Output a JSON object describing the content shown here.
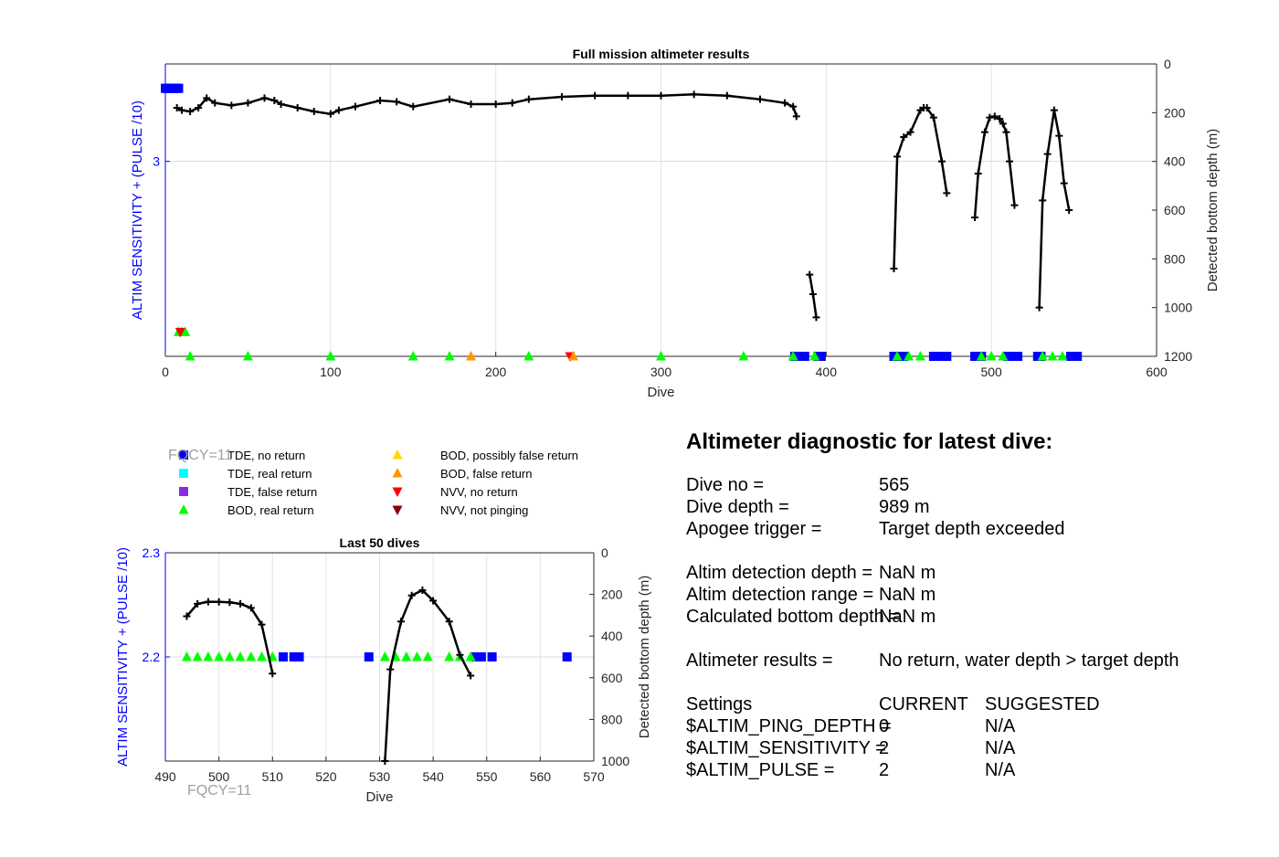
{
  "chart_data": [
    {
      "type": "scatter",
      "title": "Full mission altimeter results",
      "xlabel": "Dive",
      "ylabel_left": "ALTIM SENSITIVITY + (PULSE /10)",
      "ylabel_right": "Detected bottom depth (m)",
      "xlim": [
        0,
        600
      ],
      "xticks": [
        "0",
        "100",
        "200",
        "300",
        "400",
        "500",
        "600"
      ],
      "xtick_values": [
        0,
        100,
        200,
        300,
        400,
        500,
        600
      ],
      "ylim_left": [
        1.8,
        3.6
      ],
      "yticks_left": [
        "3"
      ],
      "ytick_left_values": [
        3
      ],
      "ylim_right_reversed": [
        0,
        1200
      ],
      "yticks_right": [
        "0",
        "200",
        "400",
        "600",
        "800",
        "1000",
        "1200"
      ],
      "ytick_right_values": [
        0,
        200,
        400,
        600,
        800,
        1000,
        1200
      ],
      "grid": true,
      "colors": {
        "left_axis": "#0000ff",
        "tde_no_return": "#0000ff",
        "bod_real_return": "#00ff00",
        "depth_line": "#000000",
        "grid": "#dcdcf0"
      },
      "series": [
        {
          "name": "TDE, no return",
          "points": [
            [
              0,
              3.45
            ],
            [
              1,
              3.45
            ],
            [
              2,
              3.45
            ],
            [
              3,
              3.45
            ],
            [
              4,
              3.45
            ],
            [
              5,
              3.45
            ],
            [
              6,
              3.45
            ],
            [
              7,
              3.45
            ],
            [
              8,
              3.45
            ],
            [
              381,
              1.8
            ],
            [
              383,
              1.8
            ],
            [
              385,
              1.8
            ],
            [
              387,
              1.8
            ],
            [
              395,
              1.8
            ],
            [
              397,
              1.8
            ],
            [
              441,
              1.8
            ],
            [
              443,
              1.8
            ],
            [
              445,
              1.8
            ],
            [
              447,
              1.8
            ],
            [
              465,
              1.8
            ],
            [
              467,
              1.8
            ],
            [
              469,
              1.8
            ],
            [
              471,
              1.8
            ],
            [
              473,
              1.8
            ],
            [
              490,
              1.8
            ],
            [
              492,
              1.8
            ],
            [
              494,
              1.8
            ],
            [
              510,
              1.8
            ],
            [
              512,
              1.8
            ],
            [
              514,
              1.8
            ],
            [
              516,
              1.8
            ],
            [
              528,
              1.8
            ],
            [
              530,
              1.8
            ],
            [
              548,
              1.8
            ],
            [
              550,
              1.8
            ],
            [
              552,
              1.8
            ]
          ]
        },
        {
          "name": "BOD, real return",
          "points": [
            [
              8,
              1.95
            ],
            [
              10,
              1.95
            ],
            [
              12,
              1.95
            ],
            [
              15,
              1.8
            ],
            [
              50,
              1.8
            ],
            [
              100,
              1.8
            ],
            [
              150,
              1.8
            ],
            [
              172,
              1.8
            ],
            [
              220,
              1.8
            ],
            [
              300,
              1.8
            ],
            [
              350,
              1.8
            ],
            [
              380,
              1.8
            ],
            [
              393,
              1.8
            ],
            [
              443,
              1.8
            ],
            [
              450,
              1.8
            ],
            [
              457,
              1.8
            ],
            [
              494,
              1.8
            ],
            [
              500,
              1.8
            ],
            [
              507,
              1.8
            ],
            [
              531,
              1.8
            ],
            [
              537,
              1.8
            ],
            [
              543,
              1.8
            ]
          ]
        },
        {
          "name": "NVV, no return",
          "points": [
            [
              9,
              1.95
            ],
            [
              245,
              1.8
            ]
          ]
        },
        {
          "name": "BOD, false return",
          "points": [
            [
              185,
              1.8
            ],
            [
              247,
              1.8
            ]
          ]
        }
      ],
      "depth_line": {
        "name": "Detected bottom depth",
        "segments": [
          [
            [
              7,
              180
            ],
            [
              10,
              190
            ],
            [
              15,
              195
            ],
            [
              20,
              180
            ],
            [
              25,
              140
            ],
            [
              30,
              160
            ],
            [
              40,
              170
            ],
            [
              50,
              160
            ],
            [
              60,
              140
            ],
            [
              66,
              150
            ],
            [
              70,
              165
            ],
            [
              80,
              180
            ],
            [
              90,
              195
            ],
            [
              100,
              205
            ],
            [
              105,
              190
            ],
            [
              115,
              175
            ],
            [
              130,
              150
            ],
            [
              140,
              155
            ],
            [
              150,
              175
            ],
            [
              172,
              145
            ],
            [
              185,
              165
            ],
            [
              200,
              165
            ],
            [
              210,
              160
            ],
            [
              220,
              145
            ],
            [
              240,
              135
            ],
            [
              260,
              130
            ],
            [
              280,
              130
            ],
            [
              300,
              130
            ],
            [
              320,
              125
            ],
            [
              340,
              130
            ],
            [
              360,
              145
            ],
            [
              375,
              160
            ],
            [
              380,
              175
            ],
            [
              382,
              215
            ]
          ],
          [
            [
              390,
              865
            ],
            [
              392,
              945
            ],
            [
              394,
              1040
            ]
          ],
          [
            [
              441,
              840
            ],
            [
              443,
              380
            ],
            [
              447,
              300
            ],
            [
              451,
              280
            ],
            [
              457,
              190
            ],
            [
              459,
              180
            ],
            [
              461,
              180
            ],
            [
              465,
              220
            ],
            [
              470,
              400
            ],
            [
              473,
              530
            ]
          ],
          [
            [
              490,
              630
            ],
            [
              492,
              450
            ],
            [
              496,
              280
            ],
            [
              499,
              220
            ],
            [
              502,
              215
            ],
            [
              505,
              225
            ],
            [
              507,
              245
            ],
            [
              509,
              280
            ],
            [
              511,
              400
            ],
            [
              514,
              580
            ]
          ],
          [
            [
              529,
              1000
            ],
            [
              531,
              560
            ],
            [
              534,
              370
            ],
            [
              538,
              190
            ],
            [
              541,
              295
            ],
            [
              544,
              490
            ],
            [
              547,
              600
            ]
          ]
        ]
      }
    },
    {
      "type": "scatter",
      "title": "Last 50 dives",
      "xlabel": "Dive",
      "ylabel_left": "ALTIM SENSITIVITY + (PULSE /10)",
      "ylabel_right": "Detected bottom depth (m)",
      "xlim": [
        490,
        570
      ],
      "xticks": [
        "490",
        "500",
        "510",
        "520",
        "530",
        "540",
        "550",
        "560",
        "570"
      ],
      "xtick_values": [
        490,
        500,
        510,
        520,
        530,
        540,
        550,
        560,
        570
      ],
      "ylim_left": [
        2.1,
        2.3
      ],
      "yticks_left": [
        "2.3",
        "2.2"
      ],
      "ytick_left_values": [
        2.3,
        2.2
      ],
      "ylim_right_reversed": [
        0,
        1000
      ],
      "yticks_right": [
        "0",
        "200",
        "400",
        "600",
        "800",
        "1000"
      ],
      "ytick_right_values": [
        0,
        200,
        400,
        600,
        800,
        1000
      ],
      "grid": true,
      "series": [
        {
          "name": "TDE, no return",
          "points": [
            [
              512,
              2.2
            ],
            [
              514,
              2.2
            ],
            [
              515,
              2.2
            ],
            [
              528,
              2.2
            ],
            [
              548,
              2.2
            ],
            [
              549,
              2.2
            ],
            [
              551,
              2.2
            ],
            [
              565,
              2.2
            ]
          ]
        },
        {
          "name": "BOD, real return",
          "points": [
            [
              494,
              2.2
            ],
            [
              496,
              2.2
            ],
            [
              498,
              2.2
            ],
            [
              500,
              2.2
            ],
            [
              502,
              2.2
            ],
            [
              504,
              2.2
            ],
            [
              506,
              2.2
            ],
            [
              508,
              2.2
            ],
            [
              510,
              2.2
            ],
            [
              531,
              2.2
            ],
            [
              533,
              2.2
            ],
            [
              535,
              2.2
            ],
            [
              537,
              2.2
            ],
            [
              539,
              2.2
            ],
            [
              543,
              2.2
            ],
            [
              545,
              2.2
            ],
            [
              547,
              2.2
            ]
          ]
        }
      ],
      "depth_line": {
        "name": "Detected bottom depth",
        "segments": [
          [
            [
              494,
              305
            ],
            [
              496,
              245
            ],
            [
              498,
              235
            ],
            [
              500,
              236
            ],
            [
              502,
              238
            ],
            [
              504,
              245
            ],
            [
              506,
              265
            ],
            [
              508,
              345
            ],
            [
              510,
              580
            ]
          ],
          [
            [
              531,
              1000
            ],
            [
              532,
              560
            ],
            [
              534,
              330
            ],
            [
              536,
              205
            ],
            [
              538,
              180
            ],
            [
              540,
              230
            ],
            [
              543,
              330
            ],
            [
              545,
              490
            ],
            [
              547,
              590
            ]
          ]
        ]
      }
    }
  ],
  "fqcy": {
    "top": "FQCY=11",
    "bottom": "FQCY=11"
  },
  "legend": [
    {
      "label": "TDE, no return",
      "color": "#0000ff",
      "marker": "square"
    },
    {
      "label": "TDE, real return",
      "color": "#00ffff",
      "marker": "square"
    },
    {
      "label": "TDE, false return",
      "color": "#8a2be2",
      "marker": "square"
    },
    {
      "label": "BOD, real return",
      "color": "#00ff00",
      "marker": "triangle-up"
    },
    {
      "label": "BOD, possibly false return",
      "color": "#ffd700",
      "marker": "triangle-up"
    },
    {
      "label": "BOD, false return",
      "color": "#ff9900",
      "marker": "triangle-up"
    },
    {
      "label": "NVV, no return",
      "color": "#ff0000",
      "marker": "triangle-down"
    },
    {
      "label": "NVV, not pinging",
      "color": "#8b0000",
      "marker": "triangle-down"
    }
  ],
  "diagnostic": {
    "title": "Altimeter diagnostic for latest dive:",
    "dive_no_label": "Dive no =",
    "dive_no_value": "565",
    "dive_depth_label": "Dive depth =",
    "dive_depth_value": "989 m",
    "apogee_label": "Apogee trigger =",
    "apogee_value": "Target depth exceeded",
    "det_depth_label": "Altim detection depth =",
    "det_depth_value": "NaN m",
    "det_range_label": "Altim detection range =",
    "det_range_value": "NaN m",
    "calc_depth_label": "Calculated bottom depth =",
    "calc_depth_value": "NaN m",
    "results_label": "Altimeter results =",
    "results_value": "No return, water depth > target depth",
    "settings_label": "Settings",
    "current_header": "CURRENT",
    "suggested_header": "SUGGESTED",
    "ping_depth_label": "$ALTIM_PING_DEPTH =",
    "ping_depth_current": "0",
    "ping_depth_suggested": "N/A",
    "sensitivity_label": "$ALTIM_SENSITIVITY =",
    "sensitivity_current": "2",
    "sensitivity_suggested": "N/A",
    "pulse_label": "$ALTIM_PULSE =",
    "pulse_current": "2",
    "pulse_suggested": "N/A"
  }
}
